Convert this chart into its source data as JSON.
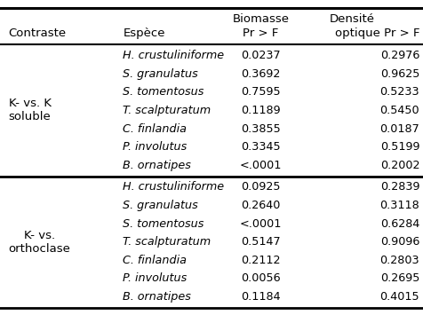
{
  "header_row1": [
    "",
    "",
    "Biomasse",
    "Densité"
  ],
  "header_row2": [
    "Contraste",
    "Espèce",
    "Pr > F",
    "optique Pr > F"
  ],
  "section1_label": "K- vs. K\nsoluble",
  "section2_label": "K- vs.\northoclase",
  "section1_rows": [
    [
      "H. crustuliniforme",
      "0.0237",
      "0.2976"
    ],
    [
      "S. granulatus",
      "0.3692",
      "0.9625"
    ],
    [
      "S. tomentosus",
      "0.7595",
      "0.5233"
    ],
    [
      "T. scalpturatum",
      "0.1189",
      "0.5450"
    ],
    [
      "C. finlandia",
      "0.3855",
      "0.0187"
    ],
    [
      "P. involutus",
      "0.3345",
      "0.5199"
    ],
    [
      "B. ornatipes",
      "<.0001",
      "0.2002"
    ]
  ],
  "section2_rows": [
    [
      "H. crustuliniforme",
      "0.0925",
      "0.2839"
    ],
    [
      "S. granulatus",
      "0.2640",
      "0.3118"
    ],
    [
      "S. tomentosus",
      "<.0001",
      "0.6284"
    ],
    [
      "T. scalpturatum",
      "0.5147",
      "0.9096"
    ],
    [
      "C. finlandia",
      "0.2112",
      "0.2803"
    ],
    [
      "P. involutus",
      "0.0056",
      "0.2695"
    ],
    [
      "B. ornatipes",
      "0.1184",
      "0.4015"
    ]
  ],
  "bg_color": "#ffffff",
  "text_color": "#000000",
  "line_color": "#000000",
  "col_contraste": 0.02,
  "col_espece": 0.29,
  "col_biomasse": 0.615,
  "col_densite": 0.99,
  "header_fontsize": 9.5,
  "body_fontsize": 9.2,
  "figsize": [
    4.77,
    3.55
  ],
  "dpi": 100
}
